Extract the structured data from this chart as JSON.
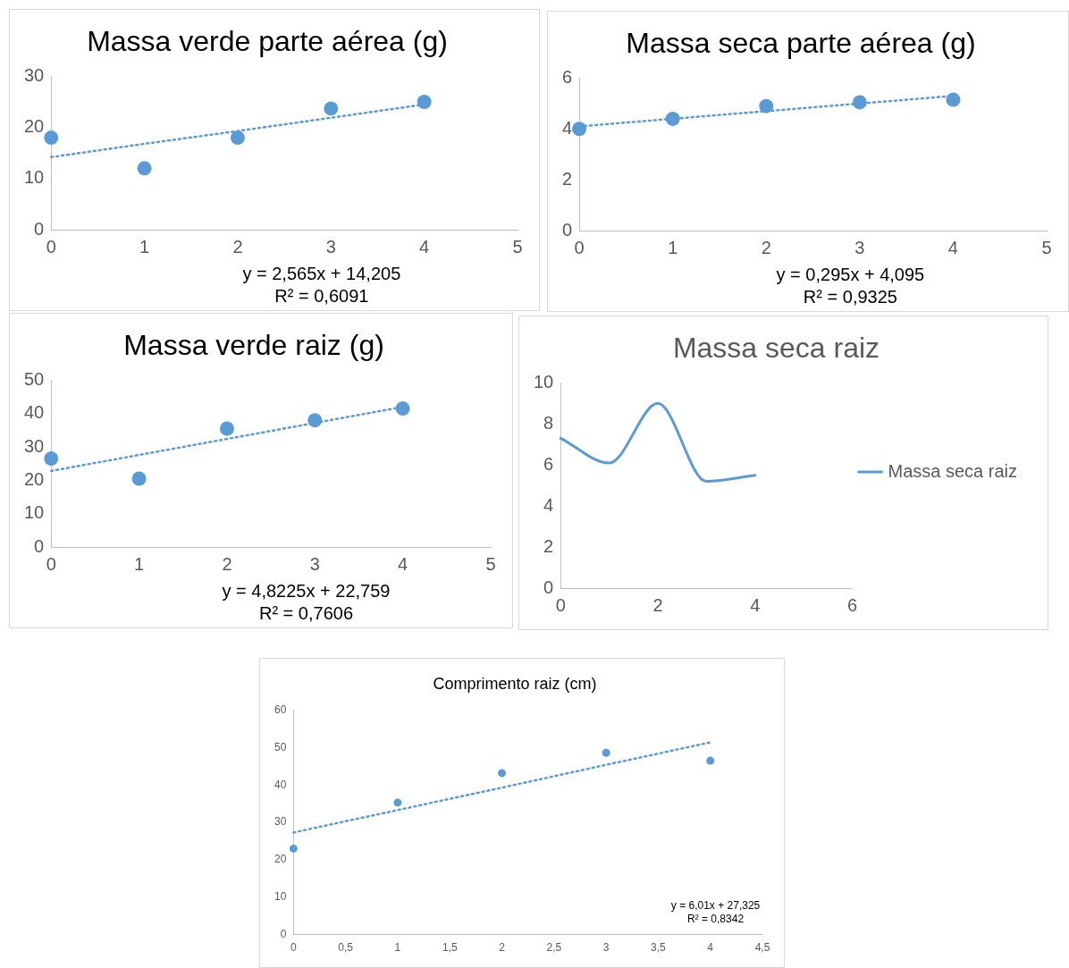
{
  "chart_data": [
    {
      "type": "scatter",
      "title": "Massa verde parte aérea (g)",
      "x": [
        0,
        1,
        2,
        3,
        4
      ],
      "xlim": [
        0,
        5
      ],
      "xticks": [
        0,
        1,
        2,
        3,
        4,
        5
      ],
      "ylim": [
        0,
        30
      ],
      "yticks": [
        0,
        10,
        20,
        30
      ],
      "grid": false,
      "marker": "circle",
      "annotations": [
        "y = 2,565x + 14,205",
        "R² = 0,6091"
      ],
      "series": [
        {
          "color": "#5b9bd5",
          "values": [
            18,
            12,
            18,
            23.7,
            25
          ]
        },
        {
          "type": "line",
          "values": [
            14.2,
            16.8,
            19.3,
            21.9,
            24.5
          ],
          "color": "#5b9bd5",
          "line_style": "dotted",
          "marker": "none"
        }
      ]
    },
    {
      "type": "scatter",
      "title": "Massa seca parte aérea (g)",
      "x": [
        0,
        1,
        2,
        3,
        4
      ],
      "xlim": [
        0,
        5
      ],
      "xticks": [
        0,
        1,
        2,
        3,
        4,
        5
      ],
      "ylim": [
        0,
        6
      ],
      "yticks": [
        0,
        2,
        4,
        6
      ],
      "grid": false,
      "marker": "circle",
      "annotations": [
        "y = 0,295x + 4,095",
        "R² = 0,9325"
      ],
      "series": [
        {
          "color": "#5b9bd5",
          "values": [
            4.0,
            4.4,
            4.9,
            5.05,
            5.15
          ]
        },
        {
          "type": "line",
          "values": [
            4.1,
            4.4,
            4.7,
            5.0,
            5.3
          ],
          "color": "#5b9bd5",
          "line_style": "dotted",
          "marker": "none"
        }
      ]
    },
    {
      "type": "scatter",
      "title": "Massa verde raiz (g)",
      "x": [
        0,
        1,
        2,
        3,
        4
      ],
      "xlim": [
        0,
        5
      ],
      "xticks": [
        0,
        1,
        2,
        3,
        4,
        5
      ],
      "ylim": [
        0,
        50
      ],
      "yticks": [
        0,
        10,
        20,
        30,
        40,
        50
      ],
      "grid": false,
      "marker": "circle",
      "annotations": [
        "y = 4,8225x + 22,759",
        "R² = 0,7606"
      ],
      "series": [
        {
          "color": "#5b9bd5",
          "values": [
            26.5,
            20.5,
            35.5,
            38,
            41.5
          ]
        },
        {
          "type": "line",
          "values": [
            22.8,
            27.6,
            32.4,
            37.2,
            42.0
          ],
          "color": "#5b9bd5",
          "line_style": "dotted",
          "marker": "none"
        }
      ]
    },
    {
      "type": "line",
      "title": "Massa seca raiz",
      "x": [
        0,
        1,
        2,
        3,
        4
      ],
      "xlim": [
        0,
        6
      ],
      "xticks": [
        0,
        2,
        4,
        6
      ],
      "ylim": [
        0,
        10
      ],
      "yticks": [
        0,
        2,
        4,
        6,
        8,
        10
      ],
      "grid": false,
      "marker": "none",
      "legend": "right",
      "series": [
        {
          "name": "Massa seca raiz",
          "color": "#5b9bd5",
          "values": [
            7.3,
            6.1,
            9.0,
            5.2,
            5.5
          ]
        }
      ]
    },
    {
      "type": "scatter",
      "title": "Comprimento raiz (cm)",
      "x": [
        0,
        1,
        2,
        3,
        4
      ],
      "xlim": [
        0,
        4.5
      ],
      "xticks": [
        0,
        {
          "value": 0.5,
          "label": "0,5"
        },
        1,
        {
          "value": 1.5,
          "label": "1,5"
        },
        2,
        {
          "value": 2.5,
          "label": "2,5"
        },
        3,
        {
          "value": 3.5,
          "label": "3,5"
        },
        4,
        {
          "value": 4.5,
          "label": "4,5"
        }
      ],
      "ylim": [
        0,
        60
      ],
      "yticks": [
        0,
        10,
        20,
        30,
        40,
        50,
        60
      ],
      "grid": false,
      "marker": "circle",
      "annotations": [
        "y = 6,01x + 27,325",
        "R² = 0,8342"
      ],
      "series": [
        {
          "color": "#5b9bd5",
          "values": [
            23,
            35.3,
            43.2,
            48.6,
            46.5
          ]
        },
        {
          "type": "line",
          "values": [
            27.3,
            33.3,
            39.3,
            45.4,
            51.4
          ],
          "color": "#5b9bd5",
          "line_style": "dotted",
          "marker": "none"
        }
      ]
    }
  ]
}
